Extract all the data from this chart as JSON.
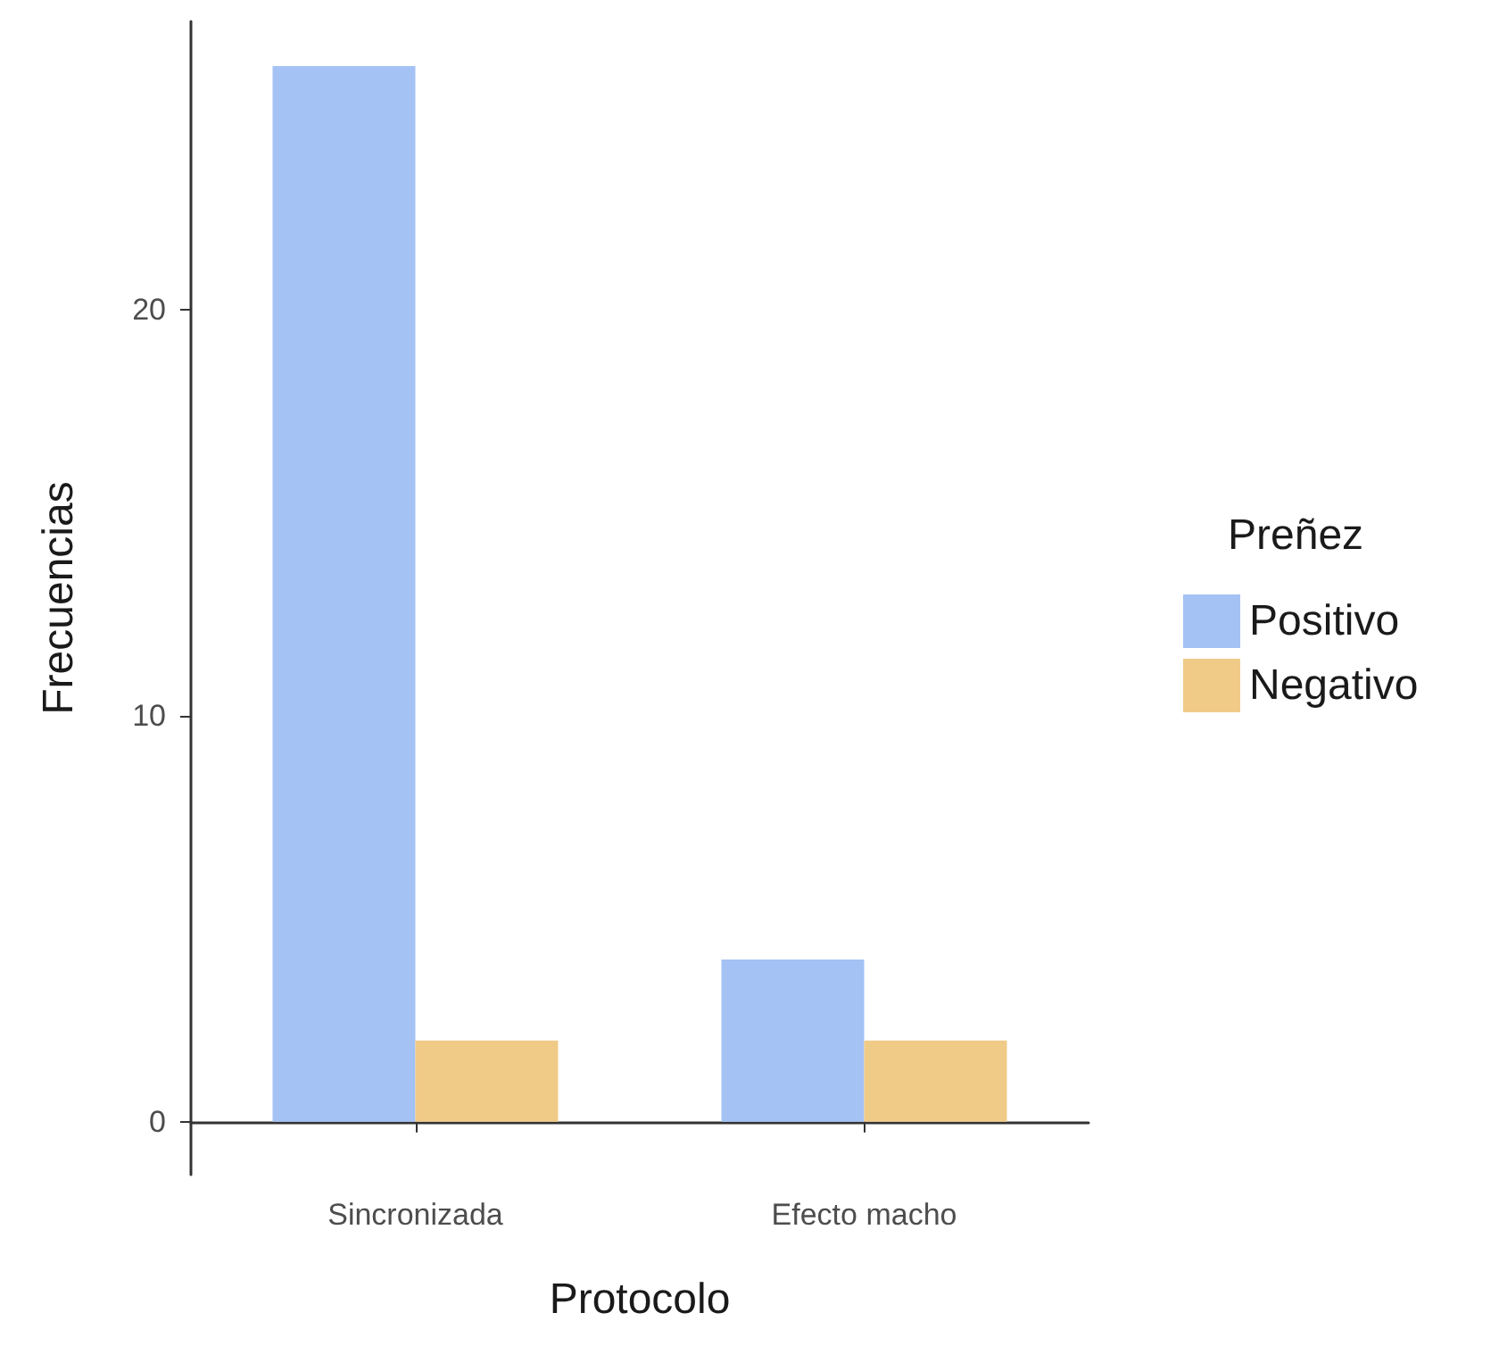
{
  "chart_data": {
    "type": "bar",
    "xlabel": "Protocolo",
    "ylabel": "Frecuencias",
    "legend_title": "Preñez",
    "categories": [
      "Sincronizada",
      "Efecto macho"
    ],
    "series": [
      {
        "name": "Positivo",
        "color": "#a4c2f4",
        "values": [
          26,
          4
        ]
      },
      {
        "name": "Negativo",
        "color": "#f0cb88",
        "values": [
          2,
          2
        ]
      }
    ],
    "ylim": [
      -1.3,
      27.1
    ],
    "yticks": [
      0,
      10,
      20
    ],
    "grid": false,
    "legend": "right"
  }
}
